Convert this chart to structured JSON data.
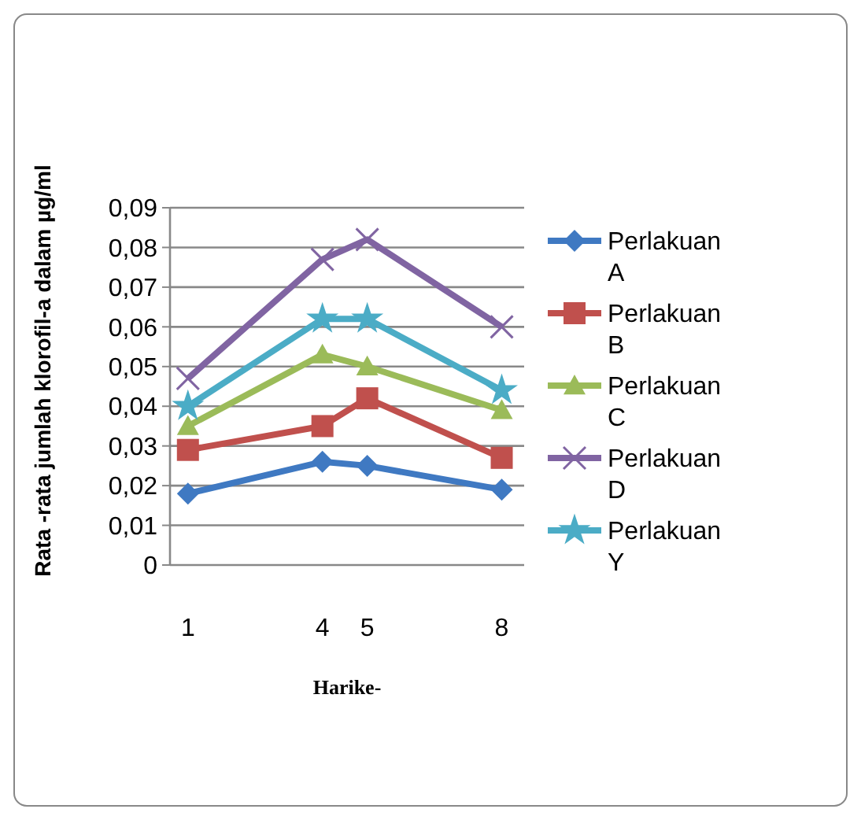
{
  "chart_data": {
    "type": "line",
    "xlabel": "Harike-",
    "ylabel": "Rata -rata jumlah klorofil-a dalam µg/ml",
    "x": [
      1,
      4,
      5,
      8
    ],
    "xlim": [
      0.6,
      8.5
    ],
    "xticks": [
      1,
      4,
      5,
      8
    ],
    "ylim": [
      0,
      0.09
    ],
    "yticks": [
      0,
      {
        "value": 0.01,
        "label": "0,01"
      },
      {
        "value": 0.02,
        "label": "0,02"
      },
      {
        "value": 0.03,
        "label": "0,03"
      },
      {
        "value": 0.04,
        "label": "0,04"
      },
      {
        "value": 0.05,
        "label": "0,05"
      },
      {
        "value": 0.06,
        "label": "0,06"
      },
      {
        "value": 0.07,
        "label": "0,07"
      },
      {
        "value": 0.08,
        "label": "0,08"
      },
      {
        "value": 0.09,
        "label": "0,09"
      }
    ],
    "grid": "y",
    "legend": "right",
    "series": [
      {
        "name": "Perlakuan A",
        "color": "#3f79c2",
        "marker": "diamond",
        "values": [
          0.018,
          0.026,
          0.025,
          0.019
        ]
      },
      {
        "name": "Perlakuan B",
        "color": "#c0504d",
        "marker": "square",
        "values": [
          0.029,
          0.035,
          0.042,
          0.027
        ]
      },
      {
        "name": "Perlakuan C",
        "color": "#9bbb59",
        "marker": "triangle",
        "values": [
          0.035,
          0.053,
          0.05,
          0.039
        ]
      },
      {
        "name": "Perlakuan D",
        "color": "#8064a2",
        "marker": "cross",
        "values": [
          0.047,
          0.077,
          0.082,
          0.06
        ]
      },
      {
        "name": "Perlakuan Y",
        "color": "#4bacc6",
        "marker": "star",
        "values": [
          0.04,
          0.062,
          0.062,
          0.044
        ]
      }
    ]
  }
}
